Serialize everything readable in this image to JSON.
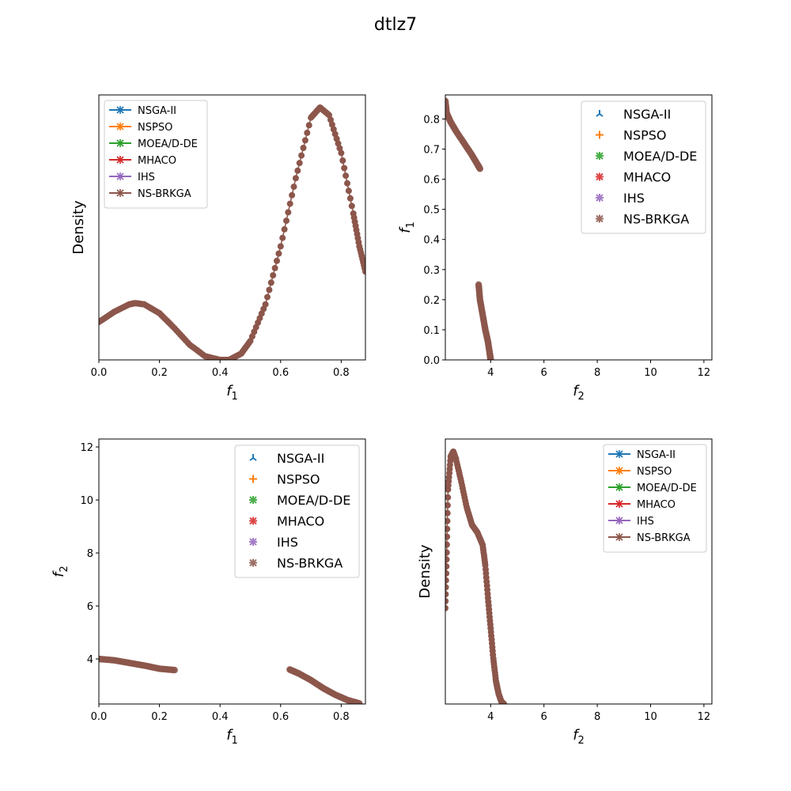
{
  "figure": {
    "title": "dtlz7"
  },
  "colors": {
    "NSGA-II": "#1f77b4",
    "NSPSO": "#ff7f0e",
    "MOEA/D-DE": "#2ca02c",
    "MHACO": "#d62728",
    "IHS": "#9467bd",
    "NS-BRKGA": "#8c564b"
  },
  "chart_data": [
    {
      "type": "line",
      "panel": "top-left",
      "xlabel": "f1",
      "ylabel": "Density",
      "xlim": [
        0.0,
        0.88
      ],
      "ylim": [
        0.0,
        1.05
      ],
      "xticks": [
        "0.0",
        "0.2",
        "0.4",
        "0.6",
        "0.8"
      ],
      "xtick_values": [
        0.0,
        0.2,
        0.4,
        0.6,
        0.8
      ],
      "yticks": [],
      "ytick_values": [],
      "legend": "top-left",
      "legend_style": "line",
      "series_names": [
        "NSGA-II",
        "NSPSO",
        "MOEA/D-DE",
        "MHACO",
        "IHS",
        "NS-BRKGA"
      ],
      "points": [
        [
          0.0,
          0.15
        ],
        [
          0.05,
          0.19
        ],
        [
          0.1,
          0.22
        ],
        [
          0.12,
          0.225
        ],
        [
          0.15,
          0.22
        ],
        [
          0.2,
          0.185
        ],
        [
          0.25,
          0.125
        ],
        [
          0.3,
          0.06
        ],
        [
          0.35,
          0.015
        ],
        [
          0.4,
          0.0
        ],
        [
          0.43,
          0.0
        ],
        [
          0.47,
          0.025
        ],
        [
          0.5,
          0.075
        ],
        [
          0.55,
          0.22
        ],
        [
          0.6,
          0.45
        ],
        [
          0.65,
          0.72
        ],
        [
          0.7,
          0.96
        ],
        [
          0.73,
          1.0
        ],
        [
          0.76,
          0.97
        ],
        [
          0.8,
          0.82
        ],
        [
          0.84,
          0.58
        ],
        [
          0.86,
          0.45
        ],
        [
          0.88,
          0.35
        ]
      ]
    },
    {
      "type": "scatter",
      "panel": "top-right",
      "xlabel": "f2",
      "ylabel": "f1",
      "xlim": [
        2.3,
        12.3
      ],
      "ylim": [
        0.0,
        0.88
      ],
      "xticks": [
        "4",
        "6",
        "8",
        "10",
        "12"
      ],
      "xtick_values": [
        4,
        6,
        8,
        10,
        12
      ],
      "yticks": [
        "0.0",
        "0.1",
        "0.2",
        "0.3",
        "0.4",
        "0.5",
        "0.6",
        "0.7",
        "0.8"
      ],
      "ytick_values": [
        0.0,
        0.1,
        0.2,
        0.3,
        0.4,
        0.5,
        0.6,
        0.7,
        0.8
      ],
      "legend": "top-right",
      "legend_style": "marker",
      "series_names": [
        "NSGA-II",
        "NSPSO",
        "MOEA/D-DE",
        "MHACO",
        "IHS",
        "NS-BRKGA"
      ],
      "segments": [
        [
          [
            2.3,
            0.86
          ],
          [
            2.35,
            0.82
          ],
          [
            2.5,
            0.79
          ],
          [
            2.7,
            0.76
          ],
          [
            3.0,
            0.72
          ],
          [
            3.3,
            0.68
          ],
          [
            3.5,
            0.65
          ],
          [
            3.6,
            0.635
          ]
        ],
        [
          [
            3.55,
            0.25
          ],
          [
            3.6,
            0.2
          ],
          [
            3.7,
            0.15
          ],
          [
            3.8,
            0.1
          ],
          [
            3.9,
            0.06
          ],
          [
            3.97,
            0.02
          ],
          [
            4.0,
            0.0
          ]
        ]
      ]
    },
    {
      "type": "scatter",
      "panel": "bottom-left",
      "xlabel": "f1",
      "ylabel": "f2",
      "xlim": [
        0.0,
        0.88
      ],
      "ylim": [
        2.3,
        12.3
      ],
      "xticks": [
        "0.0",
        "0.2",
        "0.4",
        "0.6",
        "0.8"
      ],
      "xtick_values": [
        0.0,
        0.2,
        0.4,
        0.6,
        0.8
      ],
      "yticks": [
        "4",
        "6",
        "8",
        "10",
        "12"
      ],
      "ytick_values": [
        4,
        6,
        8,
        10,
        12
      ],
      "legend": "top-right",
      "legend_style": "marker",
      "series_names": [
        "NSGA-II",
        "NSPSO",
        "MOEA/D-DE",
        "MHACO",
        "IHS",
        "NS-BRKGA"
      ],
      "segments": [
        [
          [
            0.0,
            4.0
          ],
          [
            0.05,
            3.95
          ],
          [
            0.1,
            3.85
          ],
          [
            0.15,
            3.75
          ],
          [
            0.2,
            3.63
          ],
          [
            0.25,
            3.58
          ]
        ],
        [
          [
            0.63,
            3.6
          ],
          [
            0.66,
            3.45
          ],
          [
            0.7,
            3.2
          ],
          [
            0.74,
            2.9
          ],
          [
            0.78,
            2.65
          ],
          [
            0.82,
            2.45
          ],
          [
            0.86,
            2.32
          ]
        ]
      ]
    },
    {
      "type": "line",
      "panel": "bottom-right",
      "xlabel": "f2",
      "ylabel": "Density",
      "xlim": [
        2.3,
        12.3
      ],
      "ylim": [
        0.0,
        1.05
      ],
      "xticks": [
        "4",
        "6",
        "8",
        "10",
        "12"
      ],
      "xtick_values": [
        4,
        6,
        8,
        10,
        12
      ],
      "yticks": [],
      "ytick_values": [],
      "legend": "top-right",
      "legend_style": "line",
      "series_names": [
        "NSGA-II",
        "NSPSO",
        "MOEA/D-DE",
        "MHACO",
        "IHS",
        "NS-BRKGA"
      ],
      "points": [
        [
          2.3,
          0.38
        ],
        [
          2.35,
          0.6
        ],
        [
          2.4,
          0.85
        ],
        [
          2.5,
          0.98
        ],
        [
          2.6,
          1.0
        ],
        [
          2.7,
          0.97
        ],
        [
          2.9,
          0.88
        ],
        [
          3.1,
          0.78
        ],
        [
          3.3,
          0.71
        ],
        [
          3.5,
          0.68
        ],
        [
          3.7,
          0.63
        ],
        [
          3.8,
          0.55
        ],
        [
          3.9,
          0.42
        ],
        [
          4.0,
          0.3
        ],
        [
          4.1,
          0.18
        ],
        [
          4.2,
          0.09
        ],
        [
          4.3,
          0.04
        ],
        [
          4.4,
          0.01
        ],
        [
          4.5,
          0.0
        ]
      ]
    }
  ]
}
